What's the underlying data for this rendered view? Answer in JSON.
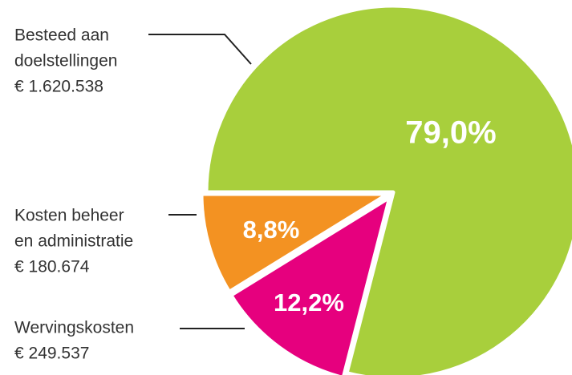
{
  "chart_data": {
    "type": "pie",
    "categories": [
      [
        "Besteed aan",
        "doelstellingen"
      ],
      [
        "Wervingskosten"
      ],
      [
        "Kosten beheer",
        "en administratie"
      ]
    ],
    "amounts": [
      "€ 1.620.538",
      "€ 249.537",
      "€ 180.674"
    ],
    "values": [
      79.0,
      12.2,
      8.8
    ],
    "value_labels": [
      "79,0%",
      "12,2%",
      "8,8%"
    ],
    "colors": [
      "#a8cf3c",
      "#e6007e",
      "#f39222"
    ],
    "start_angle": 270
  }
}
